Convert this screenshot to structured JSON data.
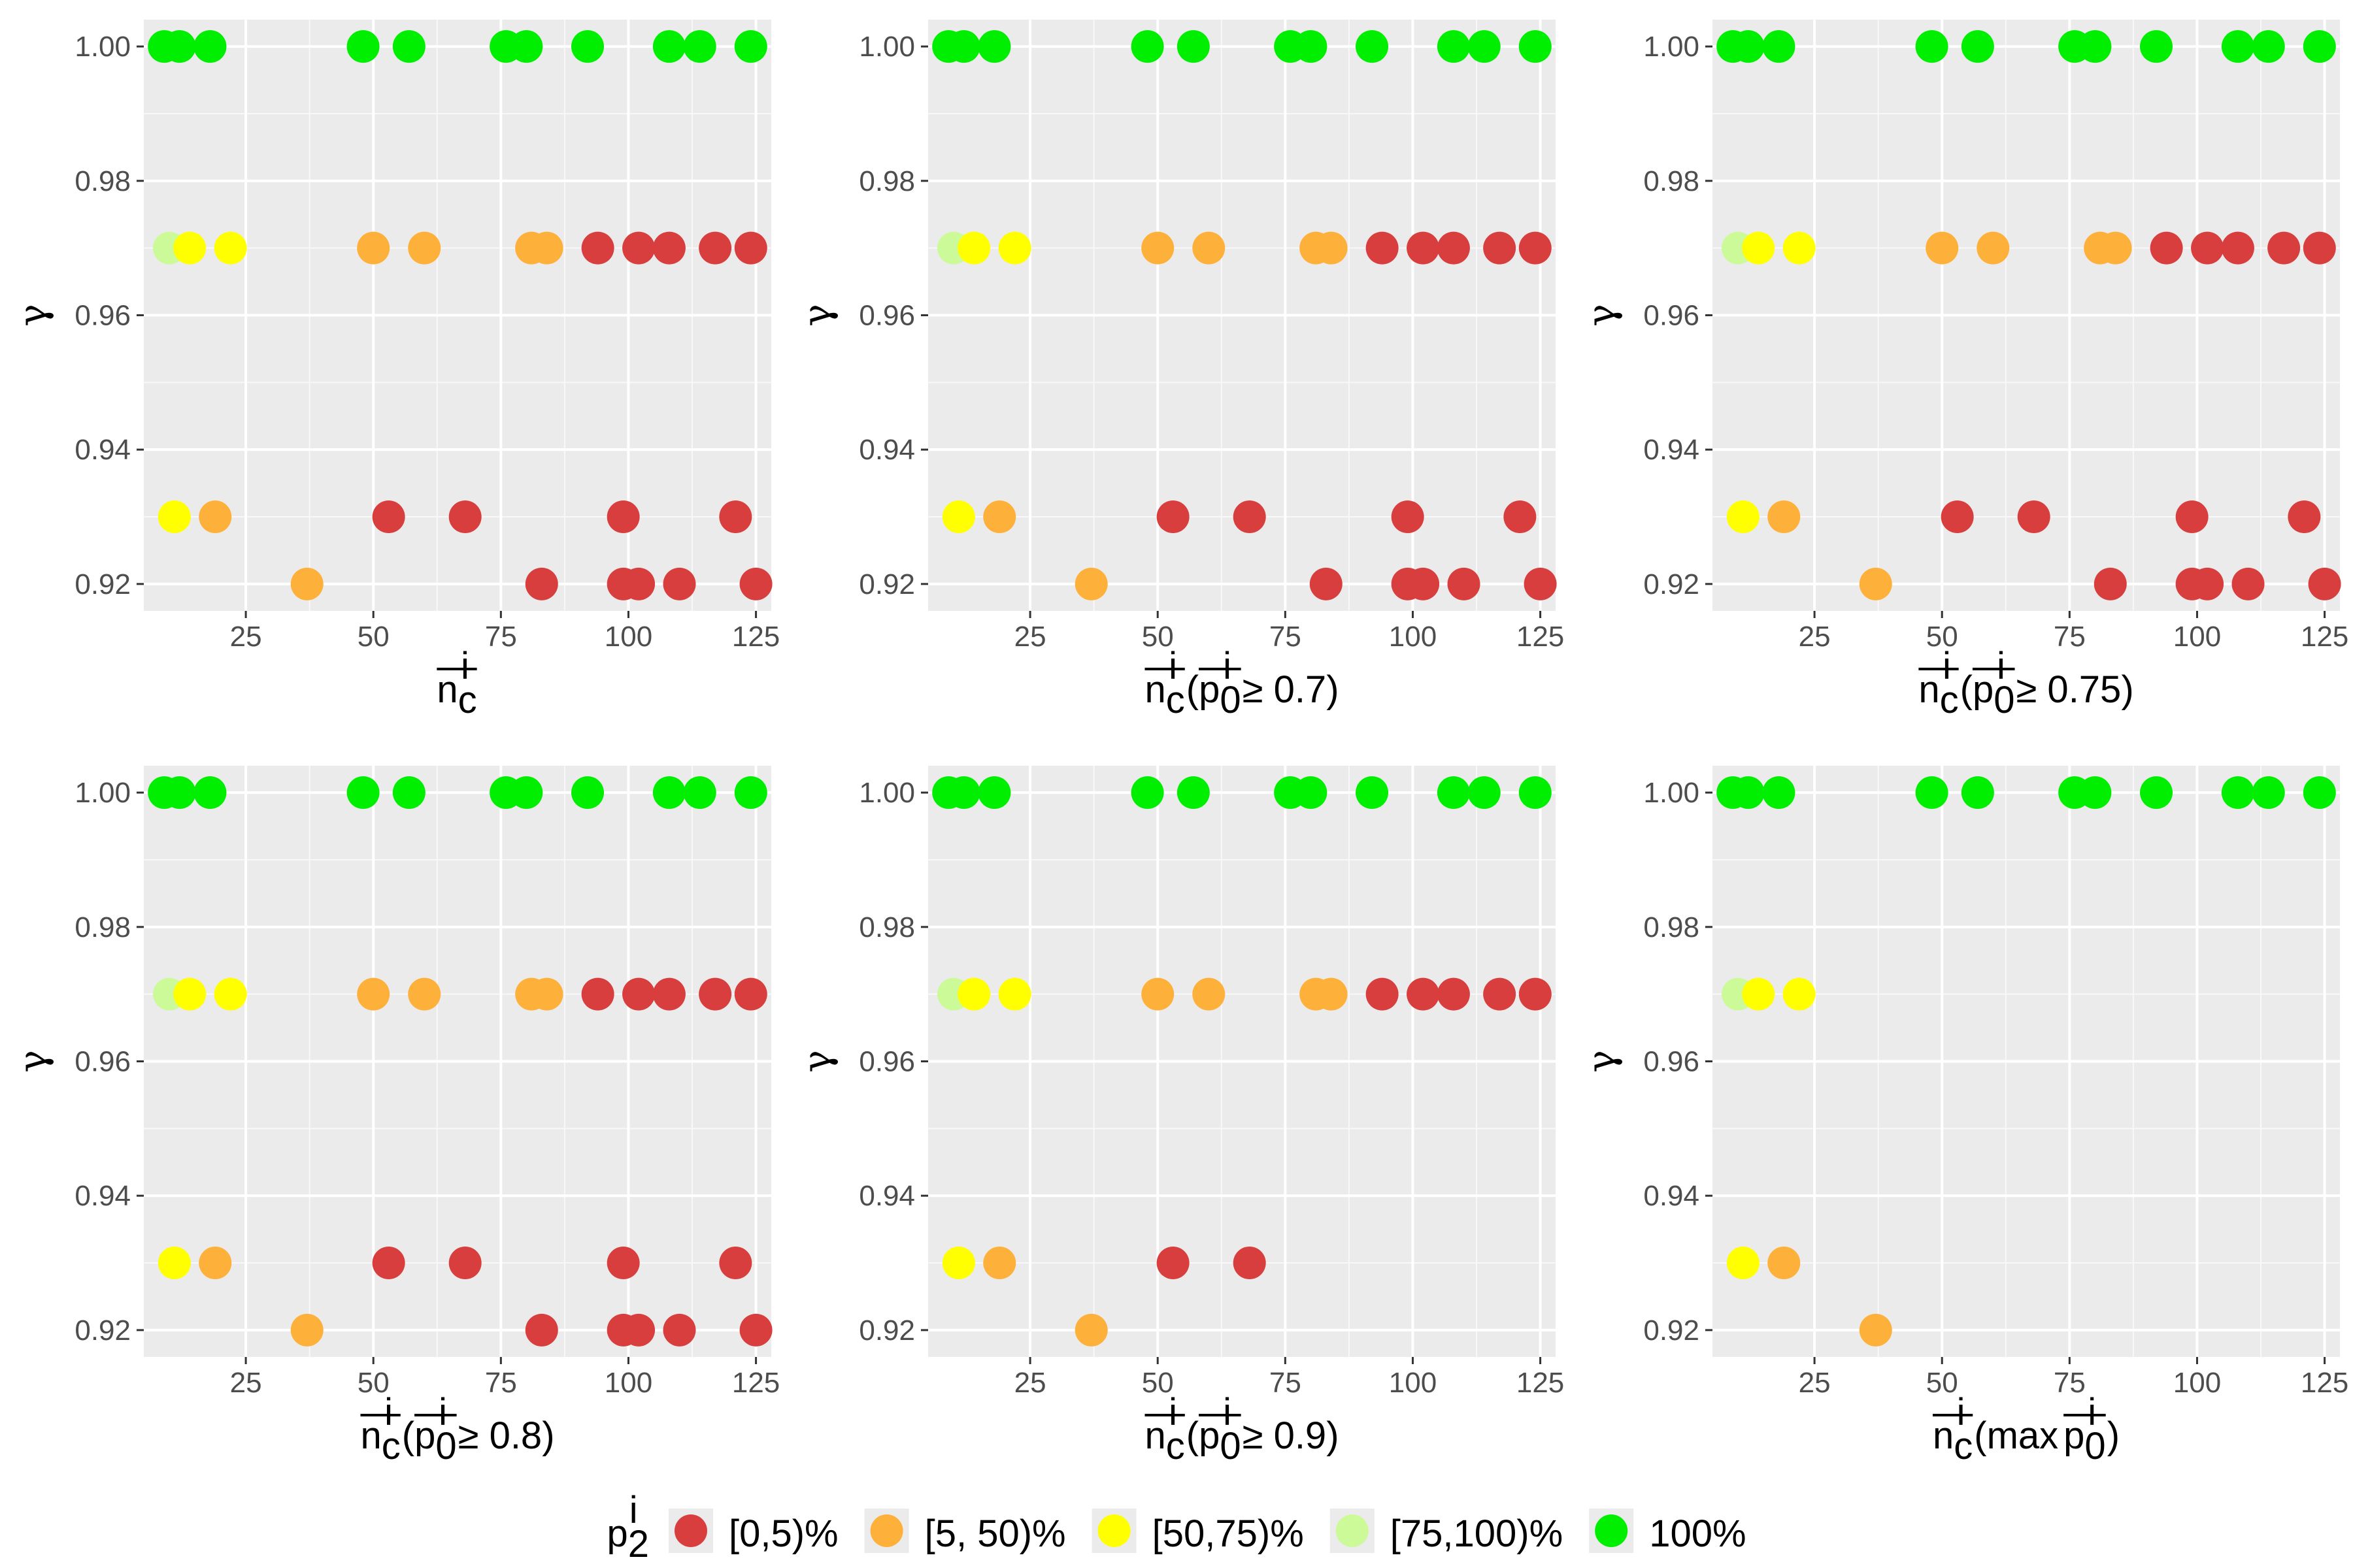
{
  "chart_data": {
    "type": "scatter",
    "y_axis_label": "γ",
    "x_ticks": [
      25,
      50,
      75,
      100,
      125
    ],
    "y_ticks": [
      "0.92",
      "0.94",
      "0.96",
      "0.98",
      "1.00"
    ],
    "xlim": [
      5,
      128
    ],
    "ylim": [
      0.916,
      1.004
    ],
    "colors": {
      "c0": "#d83e3e",
      "c1": "#fdb03a",
      "c2": "#ffff00",
      "c3": "#ccfa99",
      "c4": "#00ee00"
    },
    "legend": {
      "title": {
        "base": "p",
        "sub": "2",
        "sup": "i"
      },
      "entries": [
        {
          "label": "[0,5)%",
          "color": "c0"
        },
        {
          "label": "[5, 50)%",
          "color": "c1"
        },
        {
          "label": "[50,75)%",
          "color": "c2"
        },
        {
          "label": "[75,100)%",
          "color": "c3"
        },
        {
          "label": "100%",
          "color": "c4"
        }
      ]
    },
    "panels": [
      {
        "xlabel": {
          "main": "n",
          "sub": "c",
          "sup": "i",
          "suffix": ""
        },
        "points": [
          [
            9,
            1.0,
            "c4"
          ],
          [
            12,
            1.0,
            "c4"
          ],
          [
            18,
            1.0,
            "c4"
          ],
          [
            48,
            1.0,
            "c4"
          ],
          [
            57,
            1.0,
            "c4"
          ],
          [
            76,
            1.0,
            "c4"
          ],
          [
            80,
            1.0,
            "c4"
          ],
          [
            92,
            1.0,
            "c4"
          ],
          [
            108,
            1.0,
            "c4"
          ],
          [
            114,
            1.0,
            "c4"
          ],
          [
            124,
            1.0,
            "c4"
          ],
          [
            10,
            0.97,
            "c3"
          ],
          [
            14,
            0.97,
            "c2"
          ],
          [
            22,
            0.97,
            "c2"
          ],
          [
            50,
            0.97,
            "c1"
          ],
          [
            60,
            0.97,
            "c1"
          ],
          [
            81,
            0.97,
            "c1"
          ],
          [
            84,
            0.97,
            "c1"
          ],
          [
            94,
            0.97,
            "c0"
          ],
          [
            102,
            0.97,
            "c0"
          ],
          [
            108,
            0.97,
            "c0"
          ],
          [
            117,
            0.97,
            "c0"
          ],
          [
            124,
            0.97,
            "c0"
          ],
          [
            11,
            0.93,
            "c2"
          ],
          [
            19,
            0.93,
            "c1"
          ],
          [
            53,
            0.93,
            "c0"
          ],
          [
            68,
            0.93,
            "c0"
          ],
          [
            99,
            0.93,
            "c0"
          ],
          [
            121,
            0.93,
            "c0"
          ],
          [
            37,
            0.92,
            "c1"
          ],
          [
            83,
            0.92,
            "c0"
          ],
          [
            99,
            0.92,
            "c0"
          ],
          [
            102,
            0.92,
            "c0"
          ],
          [
            110,
            0.92,
            "c0"
          ],
          [
            125,
            0.92,
            "c0"
          ]
        ]
      },
      {
        "xlabel": {
          "main": "n",
          "sub": "c",
          "sup": "i",
          "suffix": " ≥ 0.7)",
          "paren": {
            "main": "p",
            "sub": "0",
            "sup": "i"
          }
        },
        "points": [
          [
            9,
            1.0,
            "c4"
          ],
          [
            12,
            1.0,
            "c4"
          ],
          [
            18,
            1.0,
            "c4"
          ],
          [
            48,
            1.0,
            "c4"
          ],
          [
            57,
            1.0,
            "c4"
          ],
          [
            76,
            1.0,
            "c4"
          ],
          [
            80,
            1.0,
            "c4"
          ],
          [
            92,
            1.0,
            "c4"
          ],
          [
            108,
            1.0,
            "c4"
          ],
          [
            114,
            1.0,
            "c4"
          ],
          [
            124,
            1.0,
            "c4"
          ],
          [
            10,
            0.97,
            "c3"
          ],
          [
            14,
            0.97,
            "c2"
          ],
          [
            22,
            0.97,
            "c2"
          ],
          [
            50,
            0.97,
            "c1"
          ],
          [
            60,
            0.97,
            "c1"
          ],
          [
            81,
            0.97,
            "c1"
          ],
          [
            84,
            0.97,
            "c1"
          ],
          [
            94,
            0.97,
            "c0"
          ],
          [
            102,
            0.97,
            "c0"
          ],
          [
            108,
            0.97,
            "c0"
          ],
          [
            117,
            0.97,
            "c0"
          ],
          [
            124,
            0.97,
            "c0"
          ],
          [
            11,
            0.93,
            "c2"
          ],
          [
            19,
            0.93,
            "c1"
          ],
          [
            53,
            0.93,
            "c0"
          ],
          [
            68,
            0.93,
            "c0"
          ],
          [
            99,
            0.93,
            "c0"
          ],
          [
            121,
            0.93,
            "c0"
          ],
          [
            37,
            0.92,
            "c1"
          ],
          [
            83,
            0.92,
            "c0"
          ],
          [
            99,
            0.92,
            "c0"
          ],
          [
            102,
            0.92,
            "c0"
          ],
          [
            110,
            0.92,
            "c0"
          ],
          [
            125,
            0.92,
            "c0"
          ]
        ]
      },
      {
        "xlabel": {
          "main": "n",
          "sub": "c",
          "sup": "i",
          "suffix": " ≥ 0.75)",
          "paren": {
            "main": "p",
            "sub": "0",
            "sup": "i"
          }
        },
        "points": [
          [
            9,
            1.0,
            "c4"
          ],
          [
            12,
            1.0,
            "c4"
          ],
          [
            18,
            1.0,
            "c4"
          ],
          [
            48,
            1.0,
            "c4"
          ],
          [
            57,
            1.0,
            "c4"
          ],
          [
            76,
            1.0,
            "c4"
          ],
          [
            80,
            1.0,
            "c4"
          ],
          [
            92,
            1.0,
            "c4"
          ],
          [
            108,
            1.0,
            "c4"
          ],
          [
            114,
            1.0,
            "c4"
          ],
          [
            124,
            1.0,
            "c4"
          ],
          [
            10,
            0.97,
            "c3"
          ],
          [
            14,
            0.97,
            "c2"
          ],
          [
            22,
            0.97,
            "c2"
          ],
          [
            50,
            0.97,
            "c1"
          ],
          [
            60,
            0.97,
            "c1"
          ],
          [
            81,
            0.97,
            "c1"
          ],
          [
            84,
            0.97,
            "c1"
          ],
          [
            94,
            0.97,
            "c0"
          ],
          [
            102,
            0.97,
            "c0"
          ],
          [
            108,
            0.97,
            "c0"
          ],
          [
            117,
            0.97,
            "c0"
          ],
          [
            124,
            0.97,
            "c0"
          ],
          [
            11,
            0.93,
            "c2"
          ],
          [
            19,
            0.93,
            "c1"
          ],
          [
            53,
            0.93,
            "c0"
          ],
          [
            68,
            0.93,
            "c0"
          ],
          [
            99,
            0.93,
            "c0"
          ],
          [
            121,
            0.93,
            "c0"
          ],
          [
            37,
            0.92,
            "c1"
          ],
          [
            83,
            0.92,
            "c0"
          ],
          [
            99,
            0.92,
            "c0"
          ],
          [
            102,
            0.92,
            "c0"
          ],
          [
            110,
            0.92,
            "c0"
          ],
          [
            125,
            0.92,
            "c0"
          ]
        ]
      },
      {
        "xlabel": {
          "main": "n",
          "sub": "c",
          "sup": "i",
          "suffix": " ≥ 0.8)",
          "paren": {
            "main": "p",
            "sub": "0",
            "sup": "i"
          }
        },
        "points": [
          [
            9,
            1.0,
            "c4"
          ],
          [
            12,
            1.0,
            "c4"
          ],
          [
            18,
            1.0,
            "c4"
          ],
          [
            48,
            1.0,
            "c4"
          ],
          [
            57,
            1.0,
            "c4"
          ],
          [
            76,
            1.0,
            "c4"
          ],
          [
            80,
            1.0,
            "c4"
          ],
          [
            92,
            1.0,
            "c4"
          ],
          [
            108,
            1.0,
            "c4"
          ],
          [
            114,
            1.0,
            "c4"
          ],
          [
            124,
            1.0,
            "c4"
          ],
          [
            10,
            0.97,
            "c3"
          ],
          [
            14,
            0.97,
            "c2"
          ],
          [
            22,
            0.97,
            "c2"
          ],
          [
            50,
            0.97,
            "c1"
          ],
          [
            60,
            0.97,
            "c1"
          ],
          [
            81,
            0.97,
            "c1"
          ],
          [
            84,
            0.97,
            "c1"
          ],
          [
            94,
            0.97,
            "c0"
          ],
          [
            102,
            0.97,
            "c0"
          ],
          [
            108,
            0.97,
            "c0"
          ],
          [
            117,
            0.97,
            "c0"
          ],
          [
            124,
            0.97,
            "c0"
          ],
          [
            11,
            0.93,
            "c2"
          ],
          [
            19,
            0.93,
            "c1"
          ],
          [
            53,
            0.93,
            "c0"
          ],
          [
            68,
            0.93,
            "c0"
          ],
          [
            99,
            0.93,
            "c0"
          ],
          [
            121,
            0.93,
            "c0"
          ],
          [
            37,
            0.92,
            "c1"
          ],
          [
            83,
            0.92,
            "c0"
          ],
          [
            99,
            0.92,
            "c0"
          ],
          [
            102,
            0.92,
            "c0"
          ],
          [
            110,
            0.92,
            "c0"
          ],
          [
            125,
            0.92,
            "c0"
          ]
        ]
      },
      {
        "xlabel": {
          "main": "n",
          "sub": "c",
          "sup": "i",
          "suffix": " ≥ 0.9)",
          "paren": {
            "main": "p",
            "sub": "0",
            "sup": "i"
          }
        },
        "points": [
          [
            9,
            1.0,
            "c4"
          ],
          [
            12,
            1.0,
            "c4"
          ],
          [
            18,
            1.0,
            "c4"
          ],
          [
            48,
            1.0,
            "c4"
          ],
          [
            57,
            1.0,
            "c4"
          ],
          [
            76,
            1.0,
            "c4"
          ],
          [
            80,
            1.0,
            "c4"
          ],
          [
            92,
            1.0,
            "c4"
          ],
          [
            108,
            1.0,
            "c4"
          ],
          [
            114,
            1.0,
            "c4"
          ],
          [
            124,
            1.0,
            "c4"
          ],
          [
            10,
            0.97,
            "c3"
          ],
          [
            14,
            0.97,
            "c2"
          ],
          [
            22,
            0.97,
            "c2"
          ],
          [
            50,
            0.97,
            "c1"
          ],
          [
            60,
            0.97,
            "c1"
          ],
          [
            81,
            0.97,
            "c1"
          ],
          [
            84,
            0.97,
            "c1"
          ],
          [
            94,
            0.97,
            "c0"
          ],
          [
            102,
            0.97,
            "c0"
          ],
          [
            108,
            0.97,
            "c0"
          ],
          [
            117,
            0.97,
            "c0"
          ],
          [
            124,
            0.97,
            "c0"
          ],
          [
            11,
            0.93,
            "c2"
          ],
          [
            19,
            0.93,
            "c1"
          ],
          [
            53,
            0.93,
            "c0"
          ],
          [
            68,
            0.93,
            "c0"
          ],
          [
            37,
            0.92,
            "c1"
          ]
        ]
      },
      {
        "xlabel": {
          "main": "n",
          "sub": "c",
          "sup": "i",
          "suffix": ")",
          "paren": {
            "prefix": "max",
            "main": "p",
            "sub": "0",
            "sup": "i"
          }
        },
        "points": [
          [
            9,
            1.0,
            "c4"
          ],
          [
            12,
            1.0,
            "c4"
          ],
          [
            18,
            1.0,
            "c4"
          ],
          [
            48,
            1.0,
            "c4"
          ],
          [
            57,
            1.0,
            "c4"
          ],
          [
            76,
            1.0,
            "c4"
          ],
          [
            80,
            1.0,
            "c4"
          ],
          [
            92,
            1.0,
            "c4"
          ],
          [
            108,
            1.0,
            "c4"
          ],
          [
            114,
            1.0,
            "c4"
          ],
          [
            124,
            1.0,
            "c4"
          ],
          [
            10,
            0.97,
            "c3"
          ],
          [
            14,
            0.97,
            "c2"
          ],
          [
            22,
            0.97,
            "c2"
          ],
          [
            11,
            0.93,
            "c2"
          ],
          [
            19,
            0.93,
            "c1"
          ],
          [
            37,
            0.92,
            "c1"
          ]
        ]
      }
    ]
  }
}
